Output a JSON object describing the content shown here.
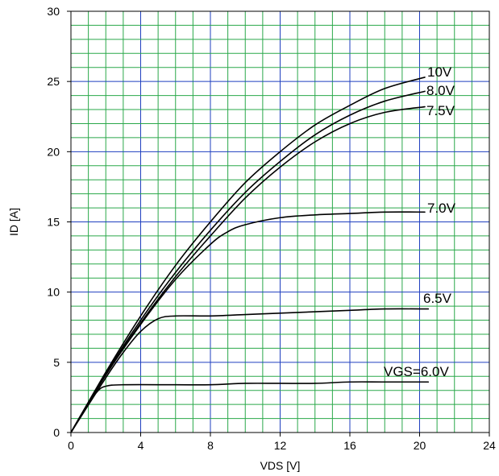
{
  "chart_data": {
    "type": "line",
    "title": "",
    "xlabel": "VDS [V]",
    "ylabel": "ID [A]",
    "xlim": [
      0,
      24
    ],
    "ylim": [
      0,
      30
    ],
    "grid": true,
    "grid_colors": {
      "minor": "#2aa84a",
      "major": "#1f3fbf"
    },
    "x_ticks": [
      "0",
      "4",
      "8",
      "12",
      "16",
      "20",
      "24"
    ],
    "y_ticks": [
      "0",
      "5",
      "10",
      "15",
      "20",
      "25",
      "30"
    ],
    "series": [
      {
        "name": "10V",
        "points": [
          [
            0,
            0
          ],
          [
            2,
            4.3
          ],
          [
            4,
            8.3
          ],
          [
            6,
            11.9
          ],
          [
            8,
            15.0
          ],
          [
            10,
            17.8
          ],
          [
            12,
            20.0
          ],
          [
            14,
            21.9
          ],
          [
            16,
            23.3
          ],
          [
            18,
            24.5
          ],
          [
            20.3,
            25.3
          ]
        ]
      },
      {
        "name": "8.0V",
        "points": [
          [
            0,
            0
          ],
          [
            2,
            4.2
          ],
          [
            4,
            8.0
          ],
          [
            6,
            11.4
          ],
          [
            8,
            14.4
          ],
          [
            10,
            17.1
          ],
          [
            12,
            19.3
          ],
          [
            14,
            21.2
          ],
          [
            16,
            22.6
          ],
          [
            18,
            23.6
          ],
          [
            20.3,
            24.3
          ]
        ]
      },
      {
        "name": "7.5V",
        "points": [
          [
            0,
            0
          ],
          [
            2,
            4.1
          ],
          [
            4,
            7.8
          ],
          [
            6,
            11.1
          ],
          [
            8,
            14.0
          ],
          [
            10,
            16.7
          ],
          [
            12,
            18.9
          ],
          [
            14,
            20.7
          ],
          [
            16,
            22.0
          ],
          [
            18,
            22.8
          ],
          [
            20.3,
            23.2
          ]
        ]
      },
      {
        "name": "7.0V",
        "points": [
          [
            0,
            0
          ],
          [
            2,
            4.1
          ],
          [
            4,
            7.7
          ],
          [
            6,
            10.9
          ],
          [
            8,
            13.4
          ],
          [
            9,
            14.3
          ],
          [
            10,
            14.8
          ],
          [
            12,
            15.3
          ],
          [
            14,
            15.5
          ],
          [
            16,
            15.6
          ],
          [
            18,
            15.7
          ],
          [
            20.3,
            15.7
          ]
        ]
      },
      {
        "name": "6.5V",
        "points": [
          [
            0,
            0
          ],
          [
            2,
            3.9
          ],
          [
            3,
            5.7
          ],
          [
            4,
            7.2
          ],
          [
            5,
            8.1
          ],
          [
            6,
            8.3
          ],
          [
            8,
            8.3
          ],
          [
            10,
            8.4
          ],
          [
            12,
            8.5
          ],
          [
            14,
            8.6
          ],
          [
            16,
            8.7
          ],
          [
            18,
            8.8
          ],
          [
            20.5,
            8.8
          ]
        ]
      },
      {
        "name": "VGS=6.0V",
        "points": [
          [
            0,
            0
          ],
          [
            0.8,
            1.7
          ],
          [
            1.5,
            2.9
          ],
          [
            2,
            3.3
          ],
          [
            3,
            3.4
          ],
          [
            6,
            3.4
          ],
          [
            8,
            3.4
          ],
          [
            10,
            3.5
          ],
          [
            12,
            3.5
          ],
          [
            14,
            3.5
          ],
          [
            16,
            3.6
          ],
          [
            18,
            3.6
          ],
          [
            20.5,
            3.6
          ]
        ]
      }
    ]
  }
}
